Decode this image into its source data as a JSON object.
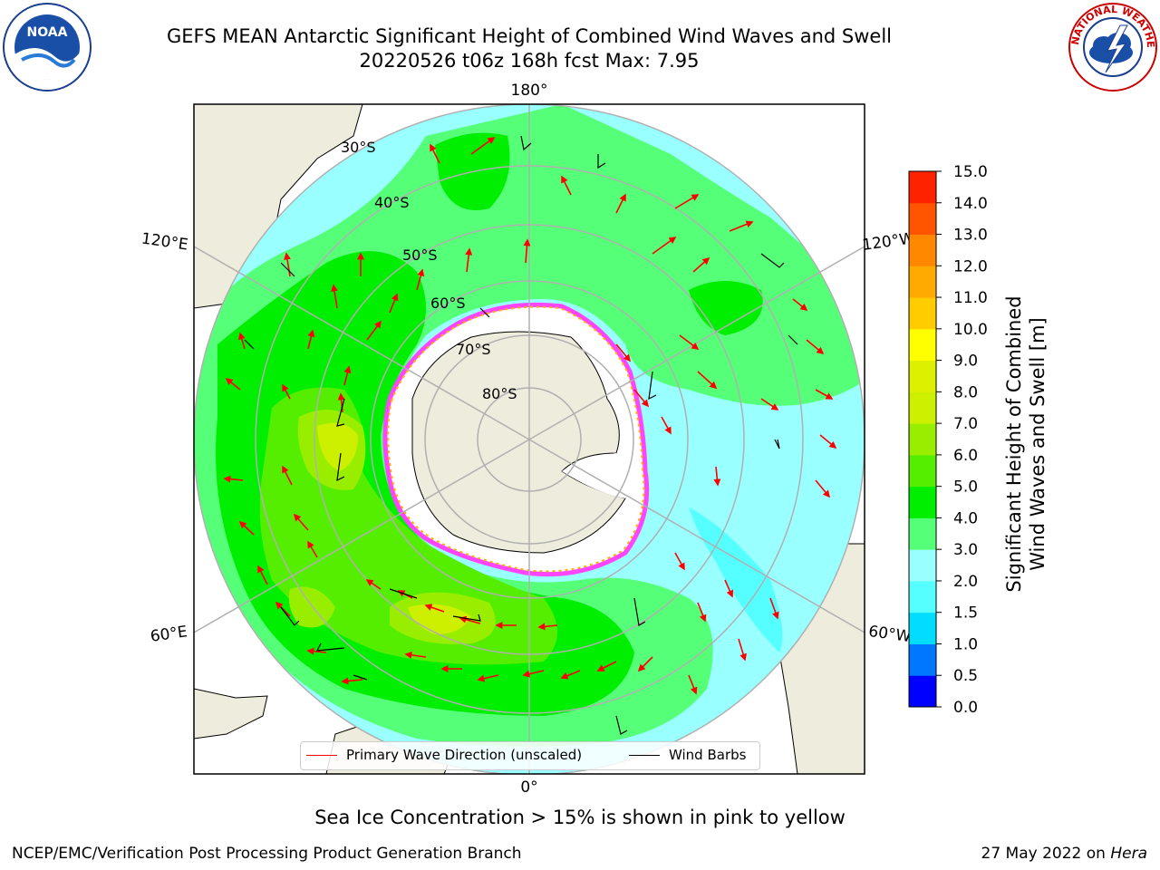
{
  "title": {
    "line1": "GEFS MEAN Antarctic Significant Height of Combined Wind Waves and Swell",
    "line2": "20220526 t06z 168h fcst   Max: 7.95"
  },
  "logos": {
    "noaa": "NOAA",
    "nws": "NATIONAL WEATHER SERVICE"
  },
  "map": {
    "projection": "south-polar-stereographic",
    "longitude_labels": [
      "180°",
      "120°E",
      "120°W",
      "60°E",
      "60°W",
      "0°"
    ],
    "latitude_labels": [
      "30°S",
      "40°S",
      "50°S",
      "60°S",
      "70°S",
      "80°S"
    ],
    "colors": {
      "land": "#eeecdc",
      "ice": "#ffffff",
      "ice_edge": [
        "#ff44ff",
        "#ffb000",
        "#ffee66"
      ],
      "grid": "#b0b0b0",
      "wave_arrow": "#ff0000",
      "barb": "#000000"
    }
  },
  "legend": {
    "primary_wave": "Primary Wave Direction (unscaled)",
    "wind_barbs": "Wind Barbs"
  },
  "colorbar": {
    "label_line1": "Significant Height of Combined",
    "label_line2": "Wind Waves and Swell [m]",
    "ticks": [
      "0.0",
      "0.5",
      "1.0",
      "1.5",
      "2.0",
      "3.0",
      "4.0",
      "5.0",
      "6.0",
      "7.0",
      "8.0",
      "9.0",
      "10.0",
      "11.0",
      "12.0",
      "13.0",
      "14.0",
      "15.0"
    ],
    "colors": [
      "#0000ff",
      "#0077ff",
      "#00ddff",
      "#55ffff",
      "#99ffff",
      "#55ff77",
      "#00ee00",
      "#55ee00",
      "#99ee00",
      "#ccf000",
      "#ddf000",
      "#ffff00",
      "#ffcc00",
      "#ffaa00",
      "#ff8800",
      "#ff5500",
      "#ff2200"
    ]
  },
  "caption": "Sea Ice Concentration > 15% is shown in pink to yellow",
  "footer": {
    "left": "NCEP/EMC/Verification Post Processing Product Generation Branch",
    "date": "27 May 2022 on ",
    "machine": "Hera"
  }
}
